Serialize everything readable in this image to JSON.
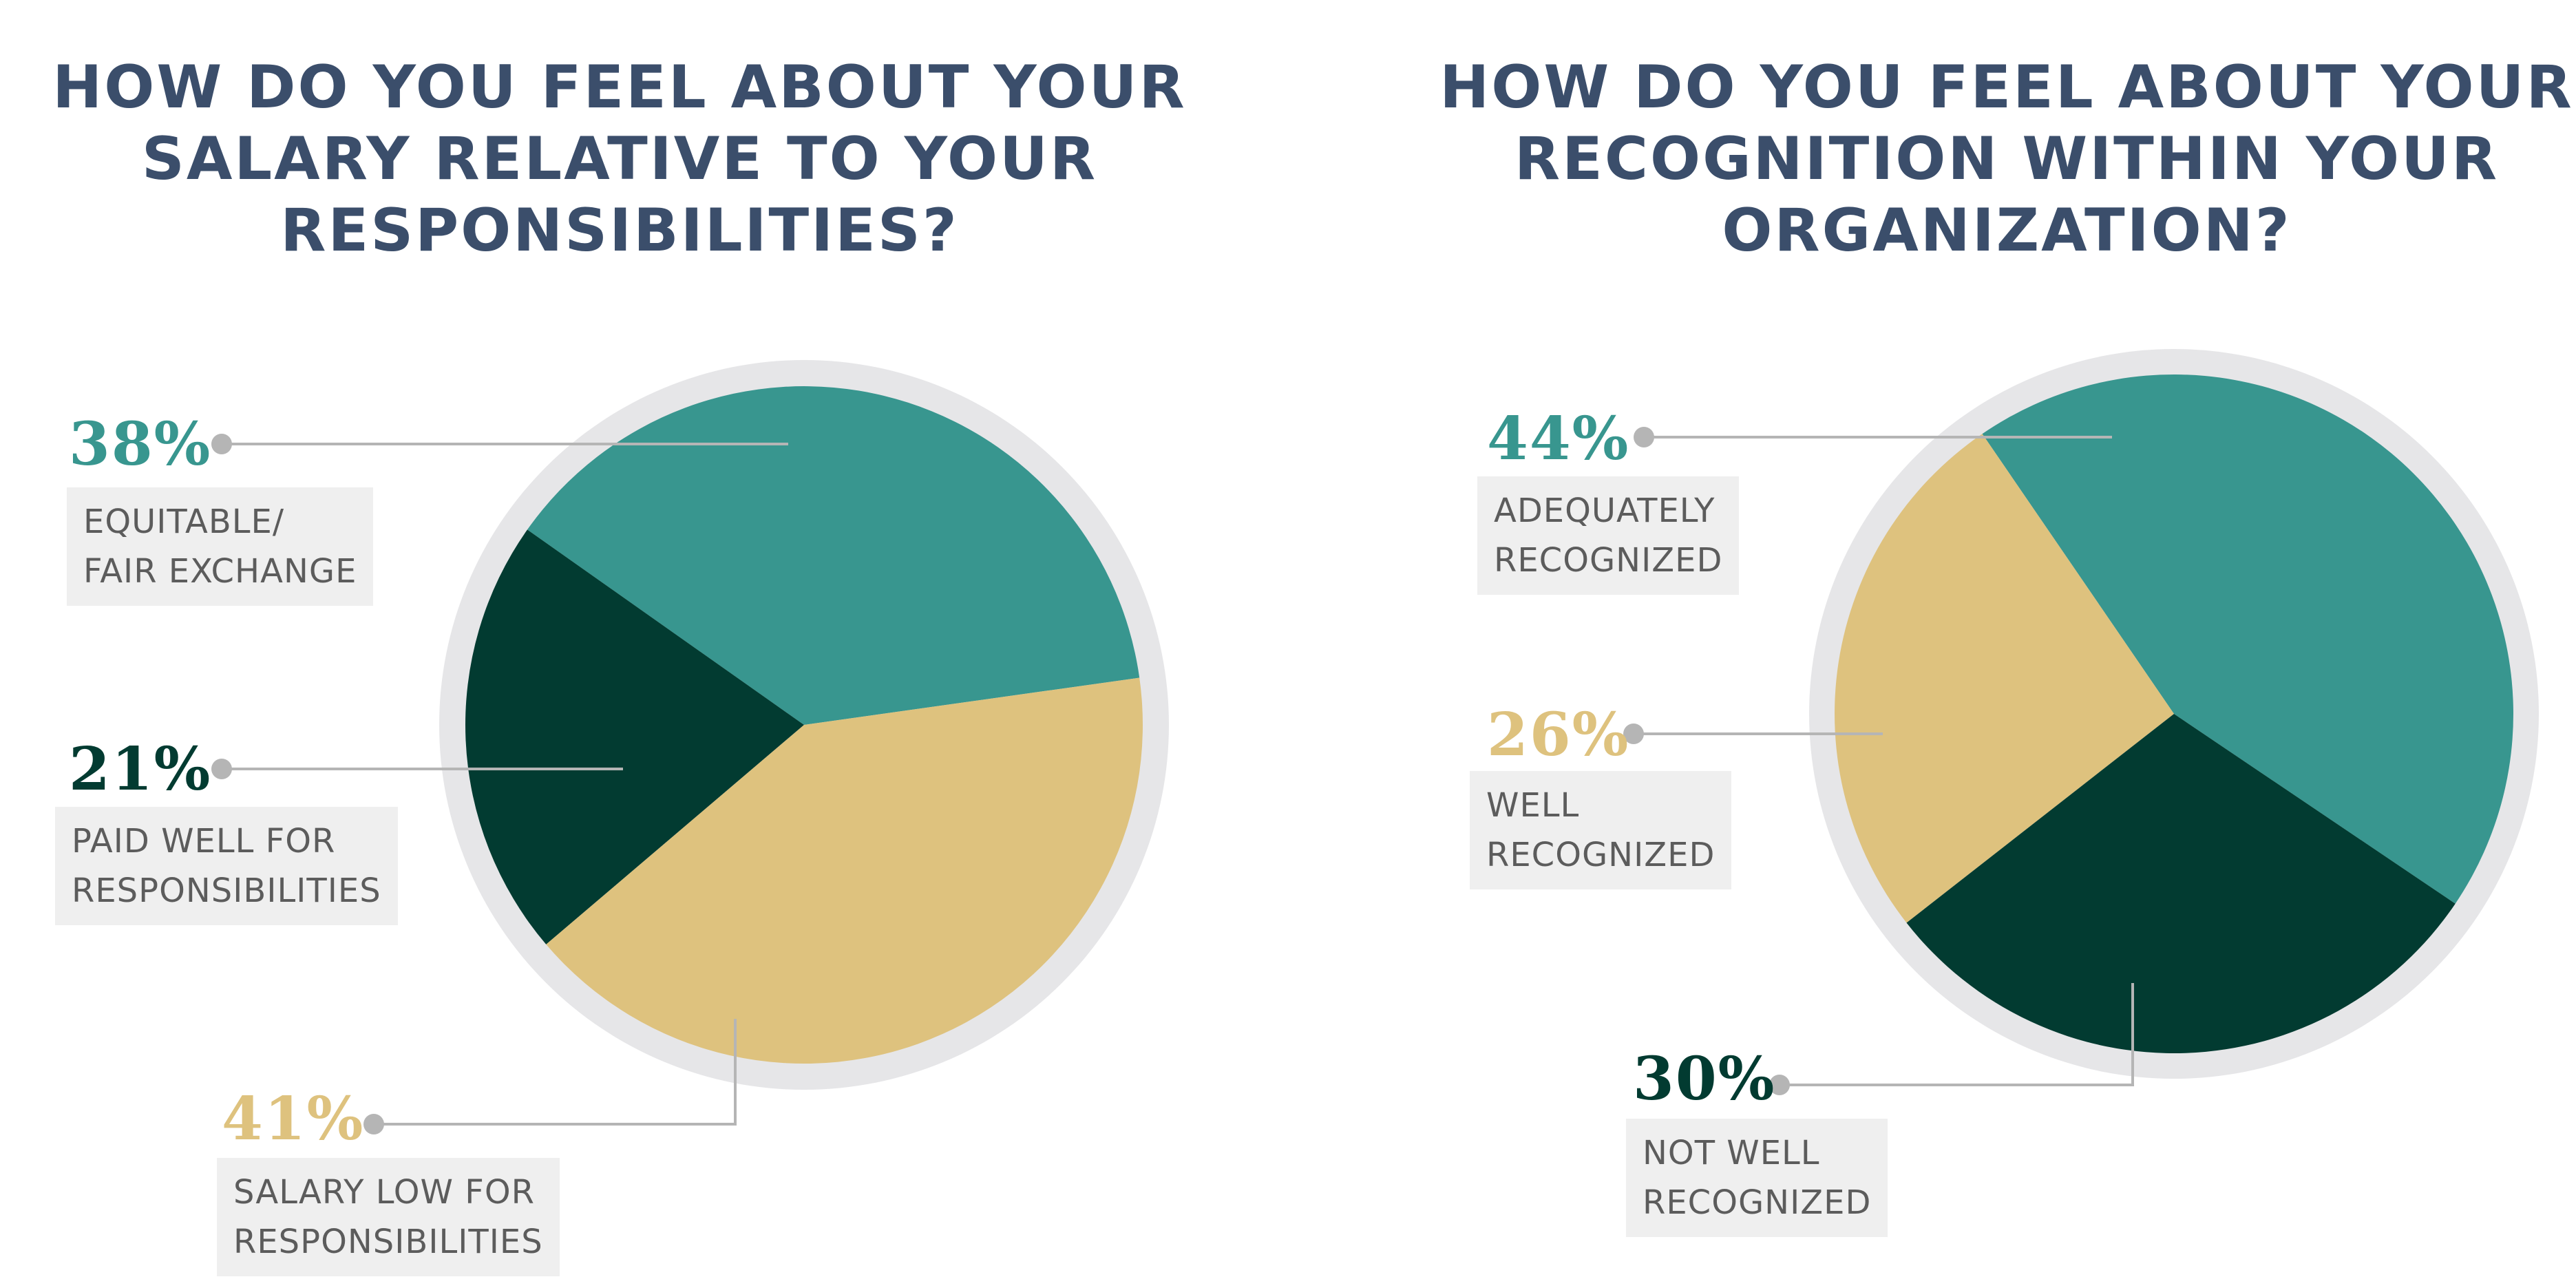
{
  "colors": {
    "title": "#3b4e6b",
    "teal": "#38968f",
    "dark_green": "#023b31",
    "gold": "#dec27e",
    "rim": "#e6e6e8",
    "label_bg": "#efefef",
    "label_text": "#5c5c5c",
    "leader": "#b5b5b5"
  },
  "chart_data": [
    {
      "type": "pie",
      "title": "HOW DO YOU FEEL ABOUT YOUR SALARY RELATIVE TO YOUR RESPONSIBILITIES?",
      "title_lines": [
        "HOW DO YOU FEEL ABOUT YOUR",
        "SALARY RELATIVE TO YOUR",
        "RESPONSIBILITIES?"
      ],
      "slices": [
        {
          "value": 38,
          "percent_label": "38%",
          "label_lines": [
            "EQUITABLE/",
            "FAIR EXCHANGE"
          ],
          "color": "#38968f"
        },
        {
          "value": 21,
          "percent_label": "21%",
          "label_lines": [
            "PAID WELL FOR",
            "RESPONSIBILITIES"
          ],
          "color": "#023b31"
        },
        {
          "value": 41,
          "percent_label": "41%",
          "label_lines": [
            "SALARY LOW FOR",
            "RESPONSIBILITIES"
          ],
          "color": "#dec27e"
        }
      ]
    },
    {
      "type": "pie",
      "title": "HOW DO YOU FEEL ABOUT YOUR RECOGNITION WITHIN YOUR ORGANIZATION?",
      "title_lines": [
        "HOW DO YOU FEEL ABOUT YOUR",
        "RECOGNITION WITHIN YOUR",
        "ORGANIZATION?"
      ],
      "slices": [
        {
          "value": 44,
          "percent_label": "44%",
          "label_lines": [
            "ADEQUATELY",
            "RECOGNIZED"
          ],
          "color": "#38968f"
        },
        {
          "value": 26,
          "percent_label": "26%",
          "label_lines": [
            "WELL",
            "RECOGNIZED"
          ],
          "color": "#dec27e"
        },
        {
          "value": 30,
          "percent_label": "30%",
          "label_lines": [
            "NOT WELL",
            "RECOGNIZED"
          ],
          "color": "#023b31"
        }
      ]
    }
  ]
}
